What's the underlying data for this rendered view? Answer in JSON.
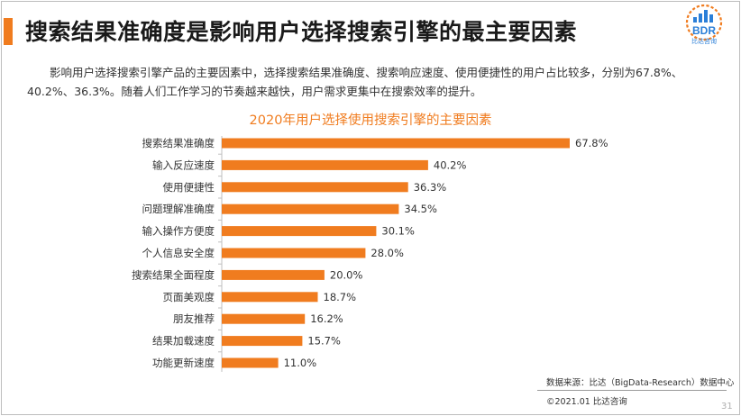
{
  "slide": {
    "title": "搜索结果准确度是影响用户选择搜索引擎的最主要因素",
    "intro": "影响用户选择搜索引擎产品的主要因素中，选择搜索结果准确度、搜索响应速度、使用便捷性的用户占比较多，分别为67.8%、40.2%、36.3%。随着人们工作学习的节奏越来越快，用户需求更集中在搜索效率的提升。",
    "source": "数据来源：比达（BigData-Research）数据中心",
    "copyright": "©2021.01 比达咨询",
    "page_number": "31"
  },
  "logo": {
    "text": "BDR",
    "subtext": "比达咨询"
  },
  "colors": {
    "accent": "#f07c1f",
    "logo_blue": "#2b7fd8",
    "text": "#333333"
  },
  "chart_data": {
    "type": "bar",
    "orientation": "horizontal",
    "title": "2020年用户选择使用搜索引擎的主要因素",
    "categories": [
      "搜索结果准确度",
      "输入反应速度",
      "使用便捷性",
      "问题理解准确度",
      "输入操作方便度",
      "个人信息安全度",
      "搜索结果全面程度",
      "页面美观度",
      "朋友推荐",
      "结果加载速度",
      "功能更新速度"
    ],
    "values": [
      67.8,
      40.2,
      36.3,
      34.5,
      30.1,
      28.0,
      20.0,
      18.7,
      16.2,
      15.7,
      11.0
    ],
    "value_labels": [
      "67.8%",
      "40.2%",
      "36.3%",
      "34.5%",
      "30.1%",
      "28.0%",
      "20.0%",
      "18.7%",
      "16.2%",
      "15.7%",
      "11.0%"
    ],
    "unit": "%",
    "xlim": [
      0,
      67.8
    ],
    "bar_color": "#f07c1f",
    "grid": false,
    "legend": "none"
  }
}
